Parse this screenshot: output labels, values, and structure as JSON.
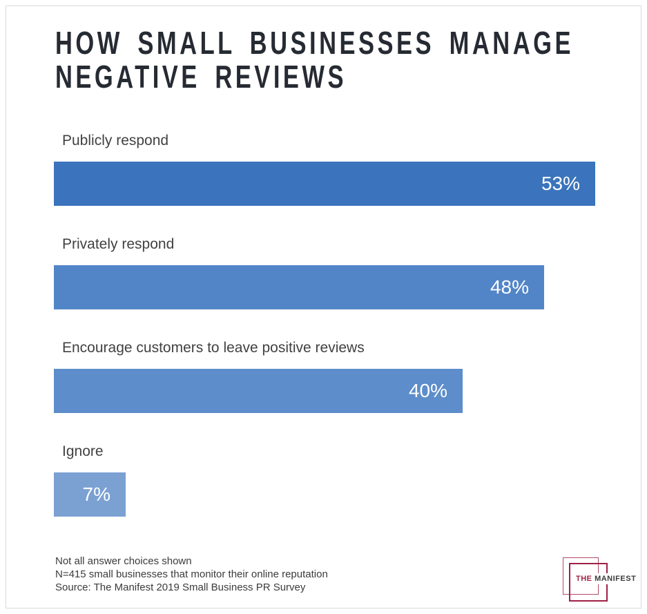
{
  "title": {
    "lines": [
      "HOW SMALL BUSINESSES MANAGE",
      "NEGATIVE REVIEWS"
    ]
  },
  "chart_data": {
    "type": "bar",
    "orientation": "horizontal",
    "title": "HOW SMALL BUSINESSES MANAGE NEGATIVE REVIEWS",
    "categories": [
      "Publicly respond",
      "Privately respond",
      "Encourage customers to leave positive reviews",
      "Ignore"
    ],
    "values": [
      53,
      48,
      40,
      7
    ],
    "value_labels": [
      "53%",
      "48%",
      "40%",
      "7%"
    ],
    "unit": "%",
    "xlim": [
      0,
      55.5
    ],
    "grid": false,
    "legend": false,
    "bar_colors": [
      "#3b74bc",
      "#5285c7",
      "#5d8dca",
      "#7ba0d2"
    ],
    "value_label_color": "#ffffff",
    "value_label_position": "inside-right"
  },
  "footer": {
    "notes": [
      "Not all answer choices shown",
      "N=415 small businesses that monitor their online reputation",
      "Source: The Manifest 2019 Small Business PR Survey"
    ]
  },
  "logo": {
    "text_the": "THE",
    "text_manifest": "MANIFEST",
    "accent_color": "#a02348",
    "text_color": "#3b3b3b"
  },
  "colors": {
    "title": "#262b33",
    "label": "#414141",
    "note": "#3b3b3b",
    "frame_border": "#d9d9d9",
    "background": "#ffffff"
  }
}
